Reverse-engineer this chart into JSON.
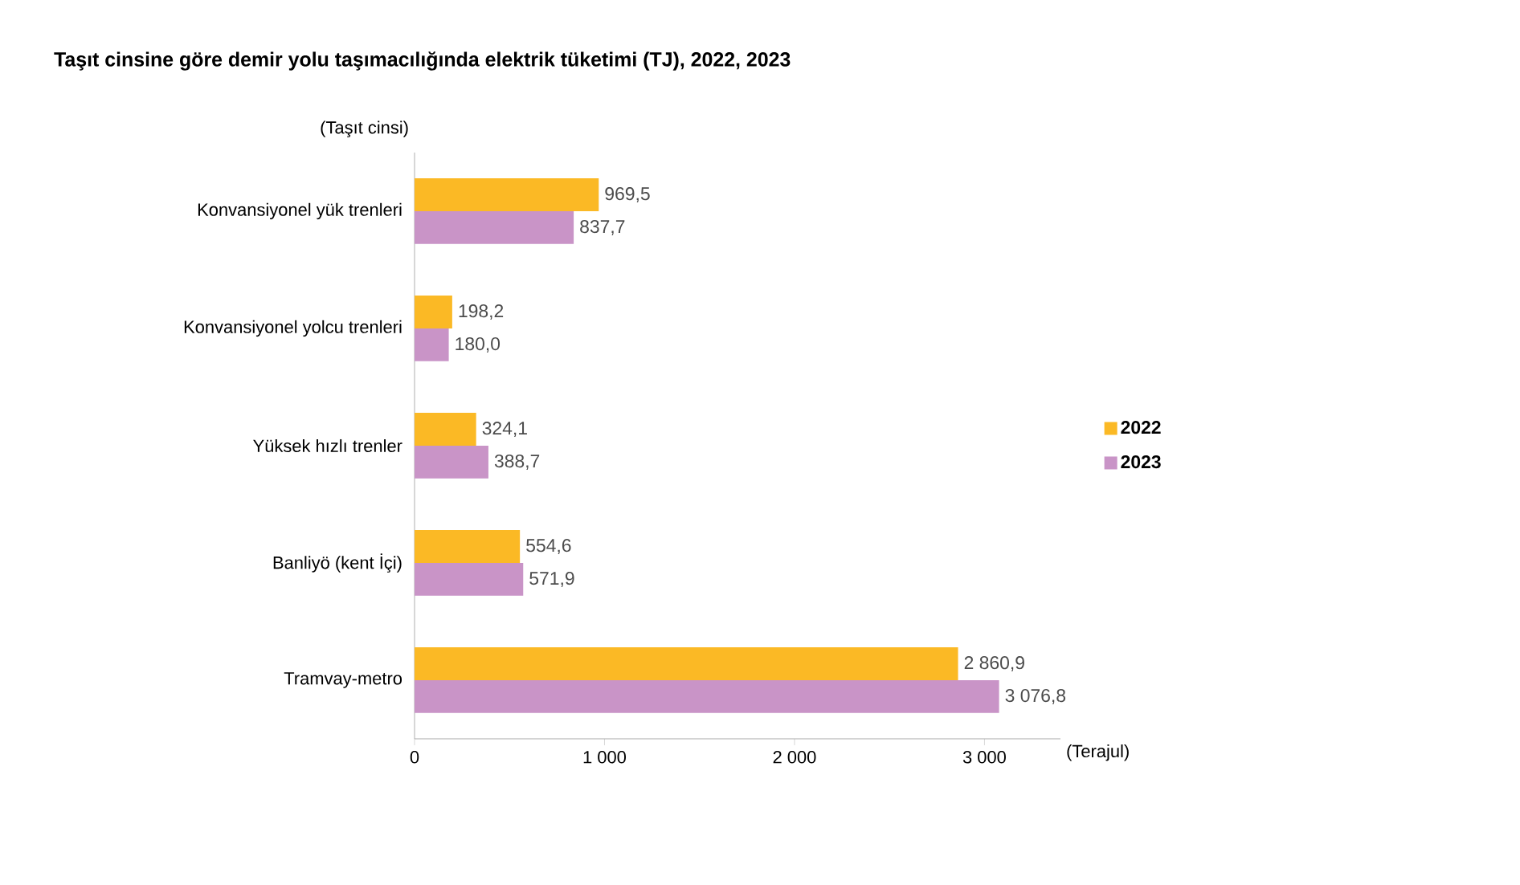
{
  "chart_data": {
    "type": "bar",
    "orientation": "horizontal",
    "title": "Taşıt cinsine göre demir yolu taşımacılığında elektrik tüketimi (TJ), 2022, 2023",
    "xlabel": "(Terajul)",
    "ylabel": "(Taşıt cinsi)",
    "categories": [
      "Konvansiyonel yük trenleri",
      "Konvansiyonel yolcu trenleri",
      "Yüksek hızlı trenler",
      "Banliyö (kent İçi)",
      "Tramvay-metro"
    ],
    "series": [
      {
        "name": "2022",
        "color": "#fbb925",
        "values": [
          969.5,
          198.2,
          324.1,
          554.6,
          2860.9
        ],
        "value_labels": [
          "969,5",
          "198,2",
          "324,1",
          "554,6",
          "2 860,9"
        ]
      },
      {
        "name": "2023",
        "color": "#c994c7",
        "values": [
          837.7,
          180.0,
          388.7,
          571.9,
          3076.8
        ],
        "value_labels": [
          "837,7",
          "180,0",
          "388,7",
          "571,9",
          "3 076,8"
        ]
      }
    ],
    "xlim": [
      0,
      3400
    ],
    "xticks": [
      0,
      {
        "value": 1000,
        "label": "1 000"
      },
      {
        "value": 2000,
        "label": "2 000"
      },
      {
        "value": 3000,
        "label": "3 000"
      }
    ],
    "legend": "right",
    "grid": false
  }
}
